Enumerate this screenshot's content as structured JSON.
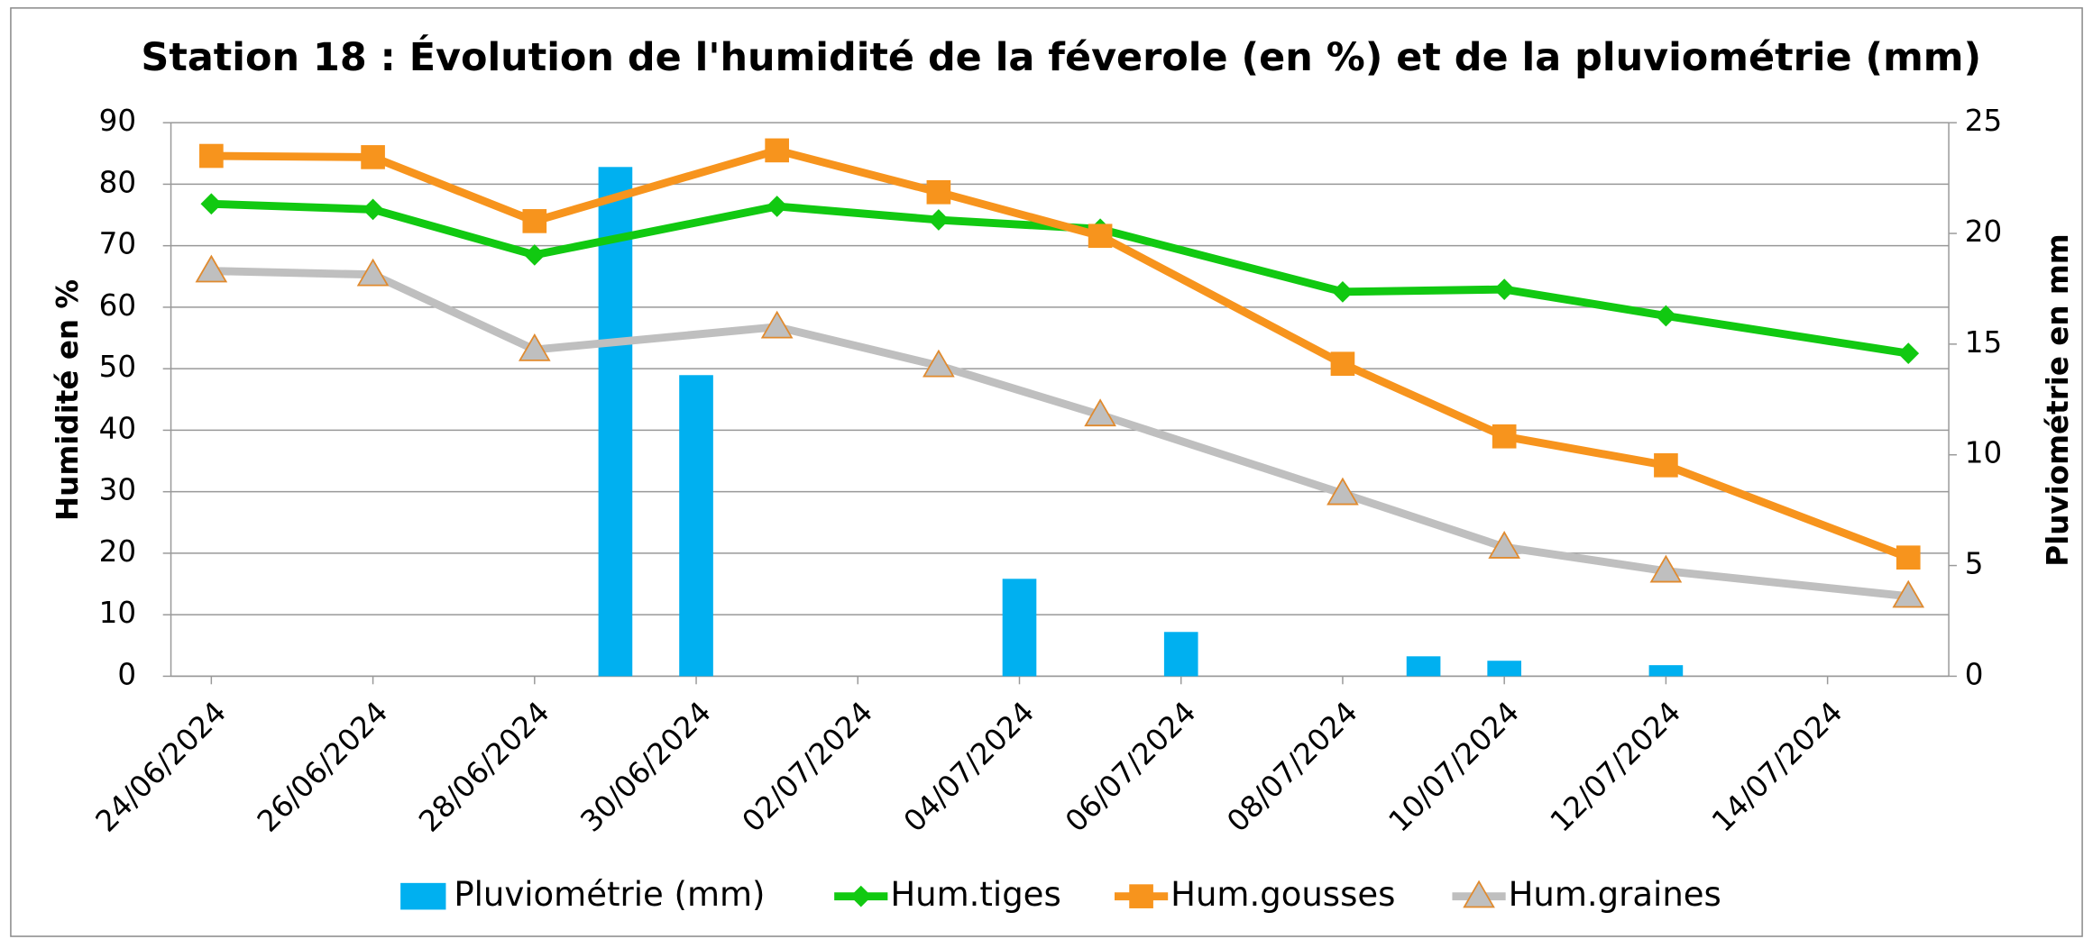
{
  "chart_data": {
    "type": "combo",
    "title": "Station 18 : Évolution de l'humidité de la féverole (en %) et de la pluviométrie (mm)",
    "y_label": "Humidité en %",
    "y2_label": "Pluviométrie en mm",
    "xlim": [
      "24/06/2024",
      "15/07/2024"
    ],
    "xticks": [
      "24/06/2024",
      "26/06/2024",
      "28/06/2024",
      "30/06/2024",
      "02/07/2024",
      "04/07/2024",
      "06/07/2024",
      "08/07/2024",
      "10/07/2024",
      "12/07/2024",
      "14/07/2024"
    ],
    "ylim": [
      0,
      90
    ],
    "yticks": [
      0,
      10,
      20,
      30,
      40,
      50,
      60,
      70,
      80,
      90
    ],
    "y2lim": [
      0,
      25
    ],
    "y2ticks": [
      0,
      5,
      10,
      15,
      20,
      25
    ],
    "grid": true,
    "legend": "bottom",
    "series": [
      {
        "name": "Pluviométrie (mm)",
        "type": "bar",
        "axis": "y2",
        "color": "#00b0f0",
        "x": [
          "29/06/2024",
          "30/06/2024",
          "04/07/2024",
          "06/07/2024",
          "09/07/2024",
          "10/07/2024",
          "12/07/2024"
        ],
        "values": [
          23.0,
          13.6,
          4.4,
          2.0,
          0.9,
          0.7,
          0.5
        ]
      },
      {
        "name": "Hum.tiges",
        "type": "line",
        "marker": "diamond",
        "color": "#11c911",
        "x": [
          "24/06/2024",
          "26/06/2024",
          "28/06/2024",
          "01/07/2024",
          "03/07/2024",
          "05/07/2024",
          "08/07/2024",
          "10/07/2024",
          "12/07/2024",
          "15/07/2024"
        ],
        "values": [
          76.8,
          75.9,
          68.5,
          76.4,
          74.2,
          72.7,
          62.5,
          62.9,
          58.6,
          52.5
        ]
      },
      {
        "name": "Hum.gousses",
        "type": "line",
        "marker": "square",
        "color": "#f7941d",
        "x": [
          "24/06/2024",
          "26/06/2024",
          "28/06/2024",
          "01/07/2024",
          "03/07/2024",
          "05/07/2024",
          "08/07/2024",
          "10/07/2024",
          "12/07/2024",
          "15/07/2024"
        ],
        "values": [
          84.6,
          84.4,
          74.0,
          85.5,
          78.7,
          71.6,
          50.8,
          39.0,
          34.3,
          19.3
        ]
      },
      {
        "name": "Hum.graines",
        "type": "line",
        "marker": "triangle",
        "color": "#bfbfbf",
        "marker_edge": "#e08a2e",
        "x": [
          "24/06/2024",
          "26/06/2024",
          "28/06/2024",
          "01/07/2024",
          "03/07/2024",
          "05/07/2024",
          "08/07/2024",
          "10/07/2024",
          "12/07/2024",
          "15/07/2024"
        ],
        "values": [
          65.9,
          65.3,
          53.1,
          56.8,
          50.5,
          42.5,
          29.7,
          21.0,
          17.1,
          13.0
        ]
      }
    ]
  }
}
